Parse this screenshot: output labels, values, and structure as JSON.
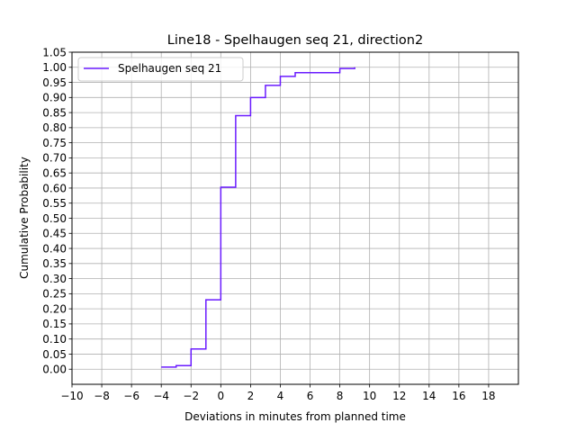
{
  "chart_data": {
    "type": "line",
    "step": true,
    "title": "Line18 - Spelhaugen seq 21, direction2",
    "xlabel": "Deviations in minutes from planned time",
    "ylabel": "Cumulative Probability",
    "xlim": [
      -10,
      20
    ],
    "ylim": [
      -0.05,
      1.05
    ],
    "xticks": [
      -10,
      -8,
      -6,
      -4,
      -2,
      0,
      2,
      4,
      6,
      8,
      10,
      12,
      14,
      16,
      18
    ],
    "xtick_labels": [
      "−10",
      "−8",
      "−6",
      "−4",
      "−2",
      "0",
      "2",
      "4",
      "6",
      "8",
      "10",
      "12",
      "14",
      "16",
      "18"
    ],
    "yticks": [
      0.0,
      0.05,
      0.1,
      0.15,
      0.2,
      0.25,
      0.3,
      0.35,
      0.4,
      0.45,
      0.5,
      0.55,
      0.6,
      0.65,
      0.7,
      0.75,
      0.8,
      0.85,
      0.9,
      0.95,
      1.0,
      1.05
    ],
    "ytick_labels": [
      "0.00",
      "0.05",
      "0.10",
      "0.15",
      "0.20",
      "0.25",
      "0.30",
      "0.35",
      "0.40",
      "0.45",
      "0.50",
      "0.55",
      "0.60",
      "0.65",
      "0.70",
      "0.75",
      "0.80",
      "0.85",
      "0.90",
      "0.95",
      "1.00",
      "1.05"
    ],
    "grid": true,
    "legend_position": "top-left",
    "series": [
      {
        "name": "Spelhaugen seq 21",
        "color": "#6a1bff",
        "x": [
          -4,
          -3,
          -2,
          -1,
          0,
          1,
          2,
          3,
          4,
          5,
          8,
          9
        ],
        "y": [
          0.007,
          0.012,
          0.067,
          0.23,
          0.603,
          0.84,
          0.9,
          0.94,
          0.97,
          0.982,
          0.996,
          1.0
        ]
      }
    ]
  }
}
